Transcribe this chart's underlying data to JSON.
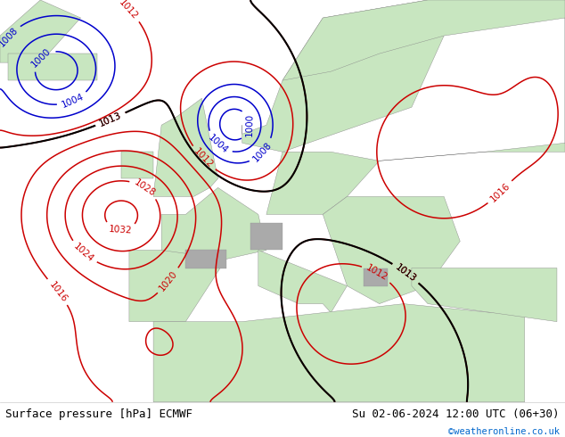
{
  "title_left": "Surface pressure [hPa] ECMWF",
  "title_right": "Su 02-06-2024 12:00 UTC (06+30)",
  "watermark": "©weatheronline.co.uk",
  "bg_color": "#ffffff",
  "land_color": "#c8e6c0",
  "sea_color": "#ddeeff",
  "mountain_color": "#aaaaaa",
  "figsize": [
    6.34,
    4.9
  ],
  "dpi": 100,
  "contour_color_red": "#cc0000",
  "contour_color_blue": "#0000cc",
  "contour_color_black": "#000000",
  "label_fontsize": 7.5,
  "footer_fontsize": 9,
  "watermark_color": "#0066cc"
}
